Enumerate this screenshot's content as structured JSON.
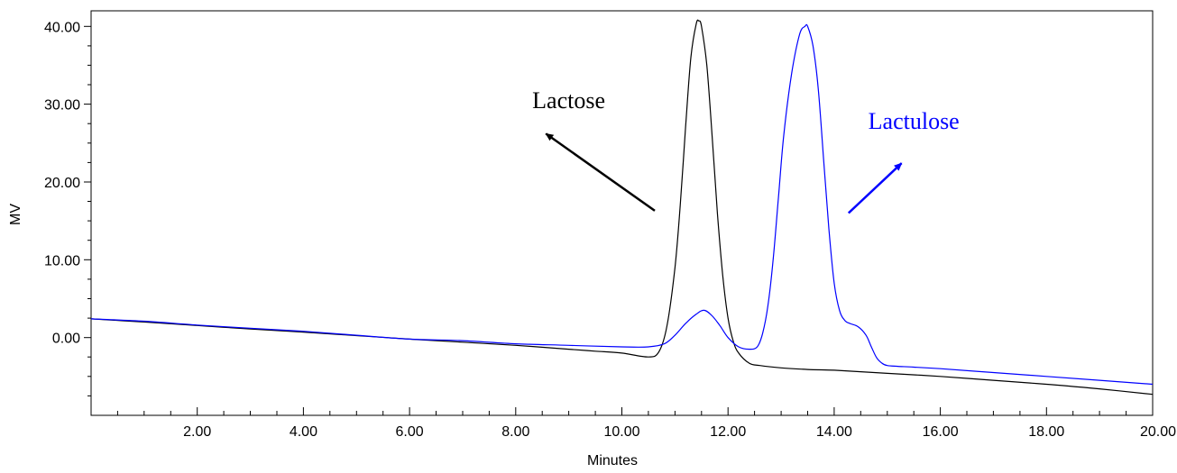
{
  "chart_data": {
    "type": "line",
    "title": "",
    "xlabel": "Minutes",
    "ylabel": "MV",
    "xlim": [
      0.0,
      20.0
    ],
    "ylim": [
      -10.0,
      42.0
    ],
    "x_ticks": [
      2.0,
      4.0,
      6.0,
      8.0,
      10.0,
      12.0,
      14.0,
      16.0,
      18.0,
      20.0
    ],
    "x_tick_labels": [
      "2.00",
      "4.00",
      "6.00",
      "8.00",
      "10.00",
      "12.00",
      "14.00",
      "16.00",
      "18.00",
      "20.00"
    ],
    "x_minor_step": 0.5,
    "y_ticks": [
      0.0,
      10.0,
      20.0,
      30.0,
      40.0
    ],
    "y_tick_labels": [
      "0.00",
      "10.00",
      "20.00",
      "30.00",
      "40.00"
    ],
    "y_minor_step": 2.5,
    "grid": false,
    "series": [
      {
        "color": "#000000",
        "x": [
          0.0,
          1.0,
          2.0,
          3.0,
          4.0,
          5.0,
          6.0,
          7.0,
          8.0,
          9.0,
          9.5,
          10.0,
          10.5,
          10.7,
          10.85,
          11.0,
          11.1,
          11.2,
          11.3,
          11.4,
          11.45,
          11.5,
          11.6,
          11.7,
          11.8,
          11.9,
          12.0,
          12.1,
          12.2,
          12.4,
          12.6,
          13.0,
          13.5,
          14.0,
          14.5,
          15.0,
          16.0,
          17.0,
          18.0,
          19.0,
          20.0
        ],
        "y": [
          2.4,
          2.0,
          1.55,
          1.1,
          0.7,
          0.25,
          -0.2,
          -0.6,
          -1.0,
          -1.5,
          -1.75,
          -2.0,
          -2.5,
          -1.8,
          1.5,
          9.0,
          17.0,
          27.0,
          36.0,
          40.3,
          40.7,
          40.0,
          35.0,
          26.0,
          16.0,
          8.0,
          2.5,
          -0.5,
          -2.0,
          -3.3,
          -3.6,
          -3.9,
          -4.1,
          -4.2,
          -4.4,
          -4.6,
          -5.0,
          -5.5,
          -6.0,
          -6.6,
          -7.3
        ]
      },
      {
        "color": "#0000ff",
        "x": [
          0.0,
          1.0,
          2.0,
          3.0,
          4.0,
          5.0,
          6.0,
          7.0,
          8.0,
          9.0,
          10.0,
          10.5,
          10.8,
          11.0,
          11.2,
          11.4,
          11.55,
          11.7,
          11.85,
          12.0,
          12.2,
          12.4,
          12.55,
          12.65,
          12.75,
          12.85,
          12.95,
          13.05,
          13.2,
          13.35,
          13.45,
          13.5,
          13.6,
          13.7,
          13.8,
          13.9,
          14.0,
          14.1,
          14.2,
          14.3,
          14.45,
          14.6,
          14.7,
          14.8,
          14.9,
          15.0,
          15.2,
          15.5,
          16.0,
          17.0,
          18.0,
          19.0,
          20.0
        ],
        "y": [
          2.4,
          2.1,
          1.6,
          1.2,
          0.8,
          0.3,
          -0.2,
          -0.4,
          -0.8,
          -1.0,
          -1.2,
          -1.2,
          -0.8,
          0.3,
          1.8,
          3.0,
          3.5,
          2.8,
          1.5,
          0.0,
          -1.2,
          -1.5,
          -1.2,
          0.5,
          4.0,
          10.0,
          18.0,
          26.0,
          34.0,
          39.0,
          40.0,
          40.0,
          37.5,
          32.0,
          23.0,
          14.0,
          7.0,
          3.5,
          2.2,
          1.8,
          1.4,
          0.3,
          -1.2,
          -2.6,
          -3.3,
          -3.6,
          -3.7,
          -3.8,
          -4.0,
          -4.5,
          -5.0,
          -5.5,
          -6.0
        ]
      }
    ],
    "annotations": [
      {
        "text": "Lactose",
        "color": "#000000",
        "text_x": 9.0,
        "text_y": 29.5,
        "arrow_from": [
          10.62,
          16.3
        ],
        "arrow_to": [
          8.57,
          26.2
        ]
      },
      {
        "text": "Lactulose",
        "color": "#0000ff",
        "text_x": 15.5,
        "text_y": 26.8,
        "arrow_from": [
          14.27,
          16.0
        ],
        "arrow_to": [
          15.27,
          22.4
        ]
      }
    ]
  }
}
